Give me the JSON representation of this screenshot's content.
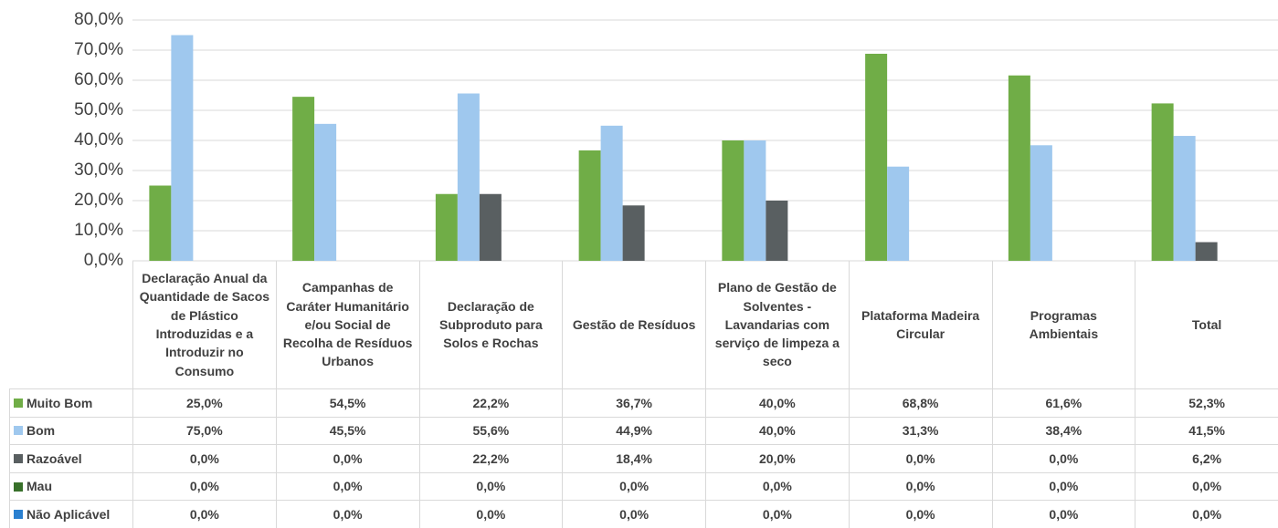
{
  "chart_data": {
    "type": "bar",
    "categories": [
      "Declaração Anual da Quantidade de Sacos de Plástico Introduzidas e a Introduzir no Consumo",
      "Campanhas de Caráter Humanitário e/ou Social de Recolha de Resíduos Urbanos",
      "Declaração de Subproduto para Solos e Rochas",
      "Gestão de Resíduos",
      "Plano de Gestão de Solventes - Lavandarias com serviço de limpeza a seco",
      "Plataforma Madeira Circular",
      "Programas Ambientais",
      "Total"
    ],
    "series": [
      {
        "name": "Muito Bom",
        "color": "#70ad47",
        "values": [
          25.0,
          54.5,
          22.2,
          36.7,
          40.0,
          68.8,
          61.6,
          52.3
        ],
        "value_labels": [
          "25,0%",
          "54,5%",
          "22,2%",
          "36,7%",
          "40,0%",
          "68,8%",
          "61,6%",
          "52,3%"
        ]
      },
      {
        "name": "Bom",
        "color": "#9fc8ee",
        "values": [
          75.0,
          45.5,
          55.6,
          44.9,
          40.0,
          31.3,
          38.4,
          41.5
        ],
        "value_labels": [
          "75,0%",
          "45,5%",
          "55,6%",
          "44,9%",
          "40,0%",
          "31,3%",
          "38,4%",
          "41,5%"
        ]
      },
      {
        "name": "Razoável",
        "color": "#595f61",
        "values": [
          0.0,
          0.0,
          22.2,
          18.4,
          20.0,
          0.0,
          0.0,
          6.2
        ],
        "value_labels": [
          "0,0%",
          "0,0%",
          "22,2%",
          "18,4%",
          "20,0%",
          "0,0%",
          "0,0%",
          "6,2%"
        ]
      },
      {
        "name": "Mau",
        "color": "#38702a",
        "values": [
          0.0,
          0.0,
          0.0,
          0.0,
          0.0,
          0.0,
          0.0,
          0.0
        ],
        "value_labels": [
          "0,0%",
          "0,0%",
          "0,0%",
          "0,0%",
          "0,0%",
          "0,0%",
          "0,0%",
          "0,0%"
        ]
      },
      {
        "name": "Não Aplicável",
        "color": "#2a80d0",
        "values": [
          0.0,
          0.0,
          0.0,
          0.0,
          0.0,
          0.0,
          0.0,
          0.0
        ],
        "value_labels": [
          "0,0%",
          "0,0%",
          "0,0%",
          "0,0%",
          "0,0%",
          "0,0%",
          "0,0%",
          "0,0%"
        ]
      }
    ],
    "ylim": [
      0,
      80
    ],
    "yticks": [
      {
        "value": 0,
        "label": "0,0%"
      },
      {
        "value": 10,
        "label": "10,0%"
      },
      {
        "value": 20,
        "label": "20,0%"
      },
      {
        "value": 30,
        "label": "30,0%"
      },
      {
        "value": 40,
        "label": "40,0%"
      },
      {
        "value": 50,
        "label": "50,0%"
      },
      {
        "value": 60,
        "label": "60,0%"
      },
      {
        "value": 70,
        "label": "70,0%"
      },
      {
        "value": 80,
        "label": "80,0%"
      }
    ],
    "grid": true
  }
}
